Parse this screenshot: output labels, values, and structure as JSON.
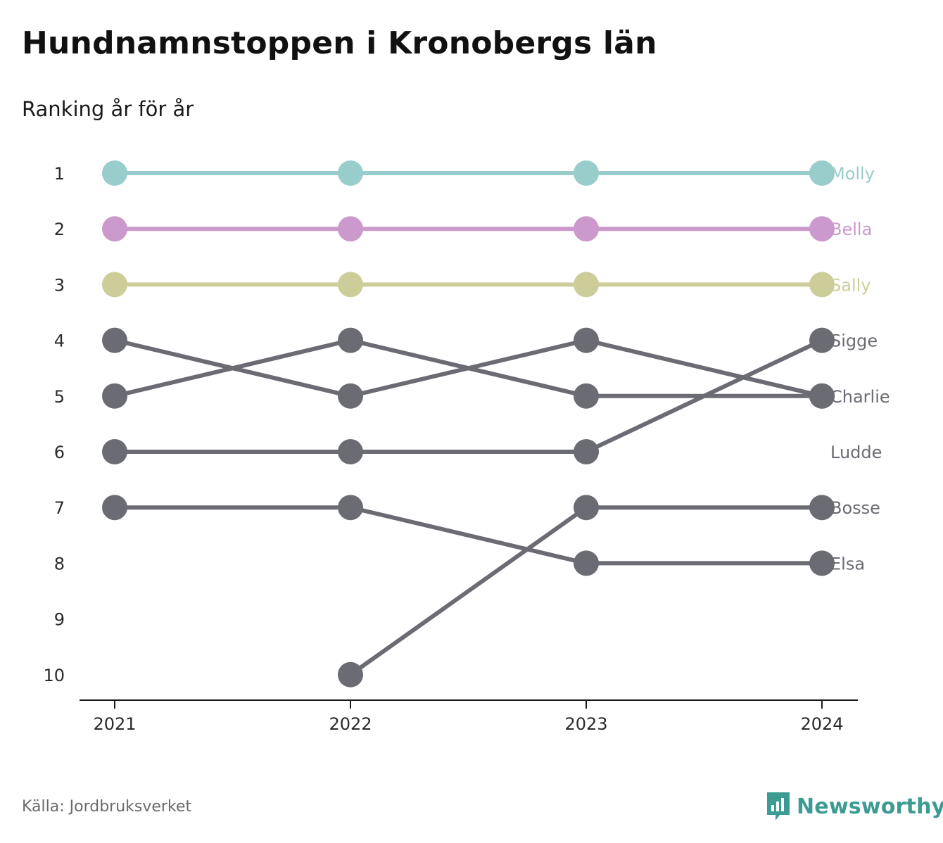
{
  "title": "Hundnamnstoppen i Kronobergs län",
  "subtitle": "Ranking år för år",
  "source": "Källa: Jordbruksverket",
  "brand": {
    "name": "Newsworthy",
    "icon": "newsworthy-logo-icon",
    "color": "#3c9b93"
  },
  "chart_data": {
    "type": "line",
    "title": "Hundnamnstoppen i Kronobergs län",
    "subtitle": "Ranking år för år",
    "x": [
      "2021",
      "2022",
      "2023",
      "2024"
    ],
    "y_ticks": [
      "1",
      "2",
      "3",
      "4",
      "5",
      "6",
      "7",
      "8",
      "9",
      "10"
    ],
    "ylim": [
      1,
      10
    ],
    "y_inverted": true,
    "grid": false,
    "series": [
      {
        "name": "Molly",
        "color": "#99cdcc",
        "values": [
          1,
          1,
          1,
          1
        ]
      },
      {
        "name": "Bella",
        "color": "#cc99cc",
        "values": [
          2,
          2,
          2,
          2
        ]
      },
      {
        "name": "Sally",
        "color": "#cdcd99",
        "values": [
          3,
          3,
          3,
          3
        ]
      },
      {
        "name": "Sigge",
        "color": "#6b6b73",
        "values": [
          6,
          6,
          6,
          4
        ]
      },
      {
        "name": "Charlie",
        "color": "#6b6b73",
        "values": [
          4,
          5,
          4,
          5
        ]
      },
      {
        "name": "Ludde",
        "color": "#6b6b73",
        "values": [
          5,
          4,
          5,
          5
        ]
      },
      {
        "name": "Bosse",
        "color": "#6b6b73",
        "values": [
          null,
          10,
          7,
          7
        ]
      },
      {
        "name": "Elsa",
        "color": "#6b6b73",
        "values": [
          7,
          7,
          8,
          8
        ]
      }
    ],
    "end_labels": [
      "Molly",
      "Bella",
      "Sally",
      "Sigge",
      "Charlie",
      "Ludde",
      "Bosse",
      "Elsa"
    ]
  }
}
